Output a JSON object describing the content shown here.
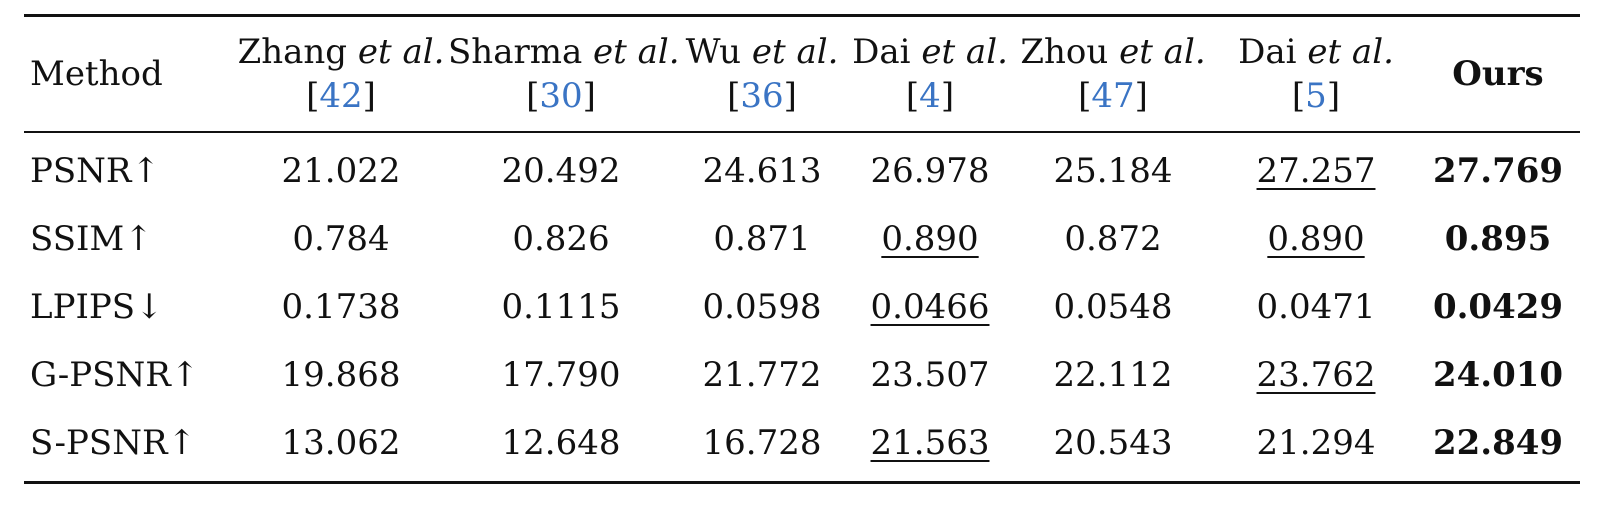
{
  "table": {
    "header": {
      "method_label": "Method",
      "methods": [
        {
          "name": "Zhang",
          "etal": "et al.",
          "cite": "42"
        },
        {
          "name": "Sharma",
          "etal": "et al.",
          "cite": "30"
        },
        {
          "name": "Wu",
          "etal": "et al.",
          "cite": "36"
        },
        {
          "name": "Dai",
          "etal": "et al.",
          "cite": "4"
        },
        {
          "name": "Zhou",
          "etal": "et al.",
          "cite": "47"
        },
        {
          "name": "Dai",
          "etal": "et al.",
          "cite": "5"
        }
      ],
      "ours_label": "Ours"
    },
    "rows": [
      {
        "metric": "PSNR↑",
        "values": [
          "21.022",
          "20.492",
          "24.613",
          "26.978",
          "25.184",
          "27.257",
          "27.769"
        ],
        "underline": [
          5
        ],
        "bold": [
          6
        ]
      },
      {
        "metric": "SSIM↑",
        "values": [
          "0.784",
          "0.826",
          "0.871",
          "0.890",
          "0.872",
          "0.890",
          "0.895"
        ],
        "underline": [
          3,
          5
        ],
        "bold": [
          6
        ]
      },
      {
        "metric": "LPIPS↓",
        "values": [
          "0.1738",
          "0.1115",
          "0.0598",
          "0.0466",
          "0.0548",
          "0.0471",
          "0.0429"
        ],
        "underline": [
          3
        ],
        "bold": [
          6
        ]
      },
      {
        "metric": "G-PSNR↑",
        "values": [
          "19.868",
          "17.790",
          "21.772",
          "23.507",
          "22.112",
          "23.762",
          "24.010"
        ],
        "underline": [
          5
        ],
        "bold": [
          6
        ]
      },
      {
        "metric": "S-PSNR↑",
        "values": [
          "13.062",
          "12.648",
          "16.728",
          "21.563",
          "20.543",
          "21.294",
          "22.849"
        ],
        "underline": [
          3
        ],
        "bold": [
          6
        ]
      }
    ]
  },
  "colors": {
    "citation": "#3a74c4",
    "text": "#111111"
  }
}
